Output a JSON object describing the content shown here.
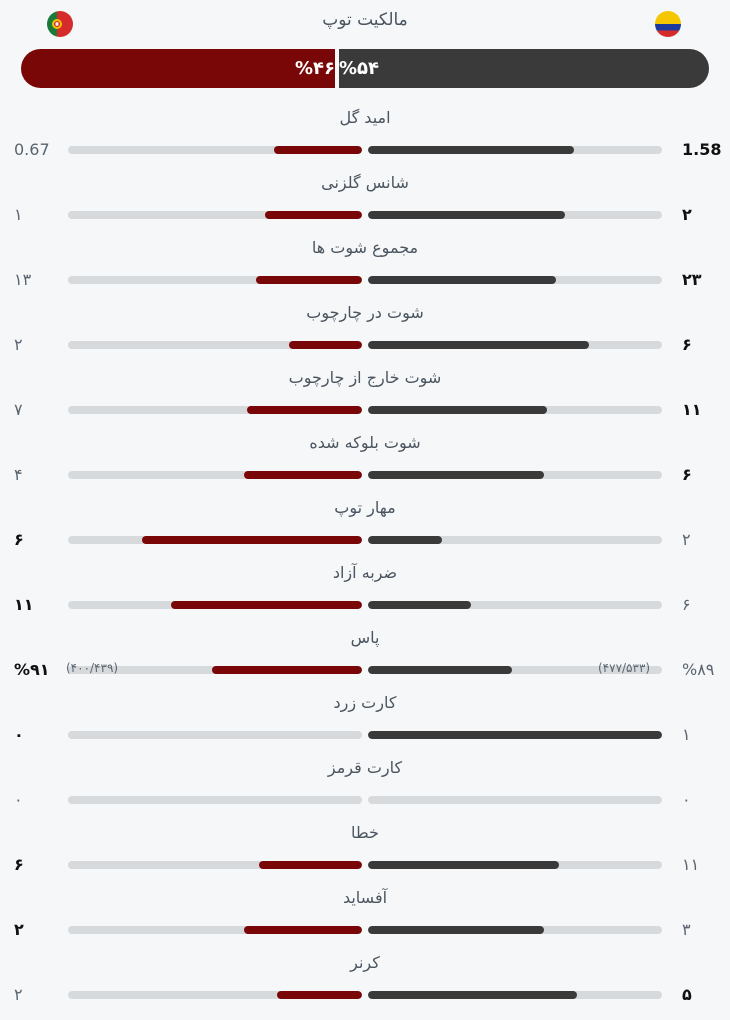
{
  "header": {
    "title": "مالکیت توپ",
    "left_team_flag": "portugal-flag-icon",
    "right_team_flag": "colombia-flag-icon"
  },
  "possession": {
    "left": {
      "label": "%۴۶",
      "value": 46
    },
    "right": {
      "label": "%۵۴",
      "value": 54
    }
  },
  "colors": {
    "left_team": "#7a0707",
    "right_team": "#3a3a3a",
    "track": "#d6dadd"
  },
  "stats": [
    {
      "label": "امید گل",
      "left": "0.67",
      "right": "1.58",
      "left_fill": 0.3,
      "right_fill": 0.7,
      "strong": "right"
    },
    {
      "label": "شانس گلزنی",
      "left": "۱",
      "right": "۲",
      "left_fill": 0.33,
      "right_fill": 0.67,
      "strong": "right"
    },
    {
      "label": "مجموع شوت ها",
      "left": "۱۳",
      "right": "۲۳",
      "left_fill": 0.36,
      "right_fill": 0.64,
      "strong": "right"
    },
    {
      "label": "شوت در چارچوب",
      "left": "۲",
      "right": "۶",
      "left_fill": 0.25,
      "right_fill": 0.75,
      "strong": "right"
    },
    {
      "label": "شوت خارج از چارچوب",
      "left": "۷",
      "right": "۱۱",
      "left_fill": 0.39,
      "right_fill": 0.61,
      "strong": "right"
    },
    {
      "label": "شوت بلوکه شده",
      "left": "۴",
      "right": "۶",
      "left_fill": 0.4,
      "right_fill": 0.6,
      "strong": "right"
    },
    {
      "label": "مهار توپ",
      "left": "۶",
      "right": "۲",
      "left_fill": 0.75,
      "right_fill": 0.25,
      "strong": "left"
    },
    {
      "label": "ضربه آزاد",
      "left": "۱۱",
      "right": "۶",
      "left_fill": 0.65,
      "right_fill": 0.35,
      "strong": "left"
    },
    {
      "label": "پاس",
      "left": "%۹۱",
      "right": "%۸۹",
      "left_fill": 0.51,
      "right_fill": 0.49,
      "strong": "left",
      "left_sub": "(۴۰۰/۴۳۹)",
      "right_sub": "(۴۷۷/۵۳۳)"
    },
    {
      "label": "کارت زرد",
      "left": "۰",
      "right": "۱",
      "left_fill": 0.0,
      "right_fill": 1.0,
      "strong": "left"
    },
    {
      "label": "کارت قرمز",
      "left": "۰",
      "right": "۰",
      "left_fill": 0.0,
      "right_fill": 0.0,
      "strong": "none"
    },
    {
      "label": "خطا",
      "left": "۶",
      "right": "۱۱",
      "left_fill": 0.35,
      "right_fill": 0.65,
      "strong": "left"
    },
    {
      "label": "آفساید",
      "left": "۲",
      "right": "۳",
      "left_fill": 0.4,
      "right_fill": 0.6,
      "strong": "left"
    },
    {
      "label": "کرنر",
      "left": "۲",
      "right": "۵",
      "left_fill": 0.29,
      "right_fill": 0.71,
      "strong": "right"
    }
  ]
}
